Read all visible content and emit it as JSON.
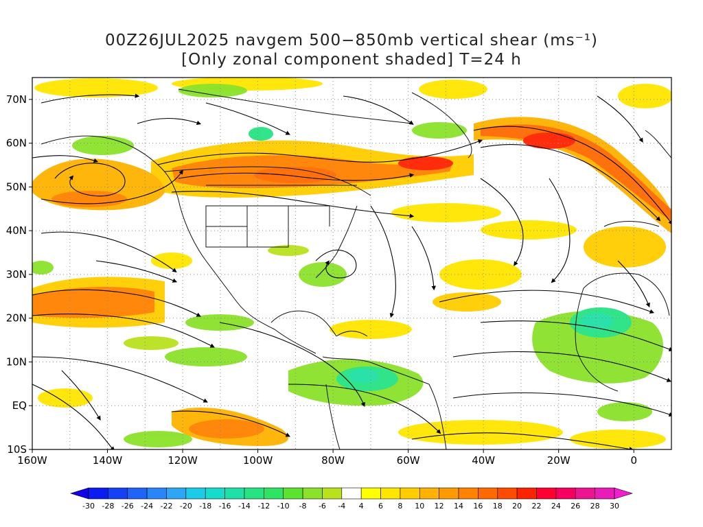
{
  "title": {
    "line1": "00Z26JUL2025 navgem 500−850mb vertical shear (ms⁻¹)",
    "line2": "[Only zonal component shaded] T=24 h"
  },
  "map": {
    "lon_range": [
      -160,
      10
    ],
    "lat_range": [
      -10,
      75
    ],
    "lat_labels": [
      "70N",
      "60N",
      "50N",
      "40N",
      "30N",
      "20N",
      "10N",
      "EQ",
      "10S"
    ],
    "lat_values": [
      70,
      60,
      50,
      40,
      30,
      20,
      10,
      0,
      -10
    ],
    "lon_labels": [
      "160W",
      "140W",
      "120W",
      "100W",
      "80W",
      "60W",
      "40W",
      "20W",
      "0"
    ],
    "lon_values": [
      -160,
      -140,
      -120,
      -100,
      -80,
      -60,
      -40,
      -20,
      0
    ]
  },
  "colorbar": {
    "labels": [
      "-30",
      "-28",
      "-26",
      "-24",
      "-22",
      "-20",
      "-18",
      "-16",
      "-14",
      "-12",
      "-10",
      "-8",
      "-6",
      "-4",
      "4",
      "6",
      "8",
      "10",
      "12",
      "14",
      "16",
      "18",
      "20",
      "22",
      "24",
      "26",
      "28",
      "30"
    ],
    "colors": [
      "#0a1cf0",
      "#1441f5",
      "#1f64f7",
      "#2a86f8",
      "#2fa6f5",
      "#1ccbe8",
      "#18dccb",
      "#1fe0a6",
      "#27e384",
      "#2fe463",
      "#5ae430",
      "#8be22b",
      "#b9e21e",
      "#ffffff",
      "#ffff00",
      "#ffe600",
      "#ffcd00",
      "#ffb300",
      "#ff9a00",
      "#ff8200",
      "#ff6a00",
      "#ff4b00",
      "#ff2200",
      "#ff0030",
      "#f50060",
      "#ec1490",
      "#e81cb6"
    ],
    "end_low": "#1400e6",
    "end_high": "#f020d2"
  }
}
